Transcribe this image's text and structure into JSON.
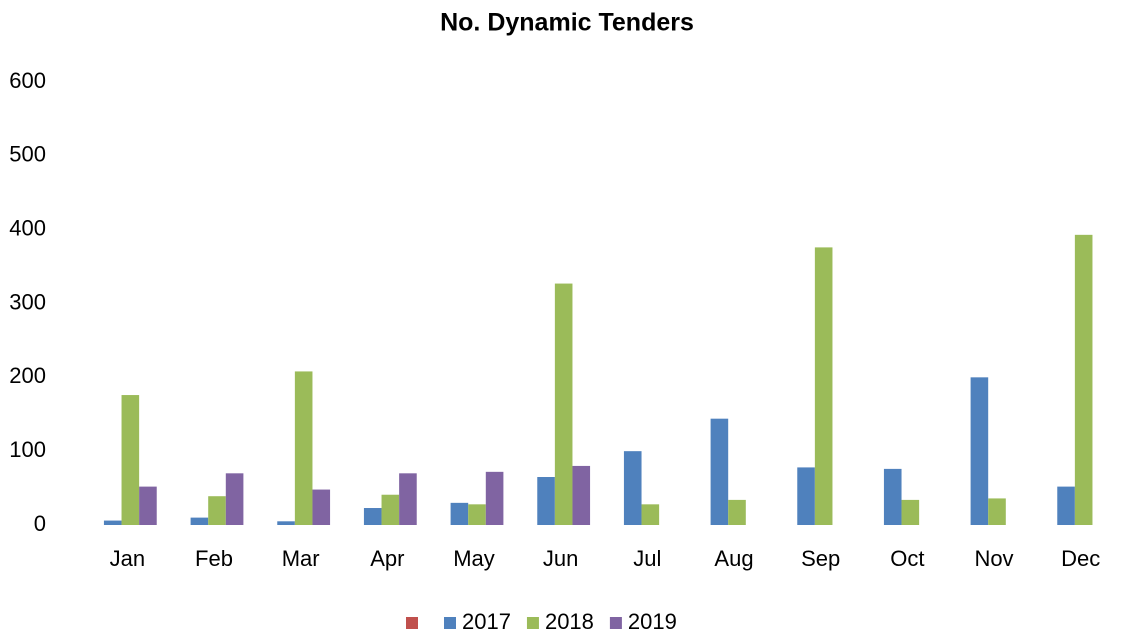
{
  "chart_data": {
    "type": "bar",
    "title": "No. Dynamic Tenders",
    "categories": [
      "Jan",
      "Feb",
      "Mar",
      "Apr",
      "May",
      "Jun",
      "Jul",
      "Aug",
      "Sep",
      "Oct",
      "Nov",
      "Dec"
    ],
    "series": [
      {
        "name": null,
        "color": "#c0504d",
        "values": [
          null,
          null,
          null,
          null,
          null,
          null,
          null,
          null,
          null,
          null,
          null,
          null
        ]
      },
      {
        "name": "2017",
        "color": "#4f81bd",
        "values": [
          6,
          10,
          5,
          23,
          30,
          65,
          100,
          144,
          78,
          76,
          200,
          52
        ]
      },
      {
        "name": "2018",
        "color": "#9bbb59",
        "values": [
          176,
          39,
          208,
          41,
          28,
          327,
          28,
          34,
          376,
          34,
          36,
          393
        ]
      },
      {
        "name": "2019",
        "color": "#8064a2",
        "values": [
          52,
          70,
          48,
          70,
          72,
          80,
          null,
          null,
          null,
          null,
          null,
          null
        ]
      }
    ],
    "ylim": [
      0,
      600
    ],
    "yticks": [
      0,
      100,
      200,
      300,
      400,
      500,
      600
    ],
    "grid": false,
    "legend": "bottom"
  }
}
